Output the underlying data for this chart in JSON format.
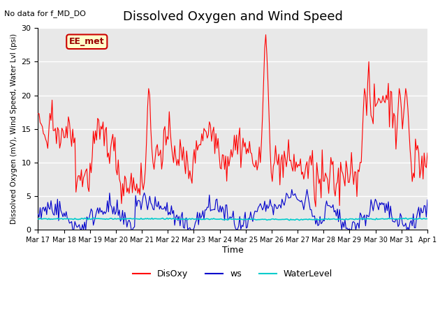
{
  "title": "Dissolved Oxygen and Wind Speed",
  "subtitle": "No data for f_MD_DO",
  "ylabel": "Dissolved Oxygen (mV), Wind Speed, Water Lvl (psi)",
  "xlabel": "Time",
  "annotation": "EE_met",
  "ylim": [
    0,
    30
  ],
  "yticks": [
    0,
    5,
    10,
    15,
    20,
    25,
    30
  ],
  "xtick_labels": [
    "Mar 17",
    "Mar 18",
    "Mar 19",
    "Mar 20",
    "Mar 21",
    "Mar 22",
    "Mar 23",
    "Mar 24",
    "Mar 25",
    "Mar 26",
    "Mar 27",
    "Mar 28",
    "Mar 29",
    "Mar 30",
    "Mar 31",
    "Apr 1"
  ],
  "colors": {
    "DisOxy": "#ff0000",
    "ws": "#0000cc",
    "WaterLevel": "#00cccc",
    "bg_plot": "#e8e8e8",
    "bg_fig": "#ffffff",
    "annotation_bg": "#ffffcc",
    "annotation_border": "#cc0000"
  },
  "legend_labels": [
    "DisOxy",
    "ws",
    "WaterLevel"
  ],
  "grid_color": "#ffffff",
  "n_points": 360
}
